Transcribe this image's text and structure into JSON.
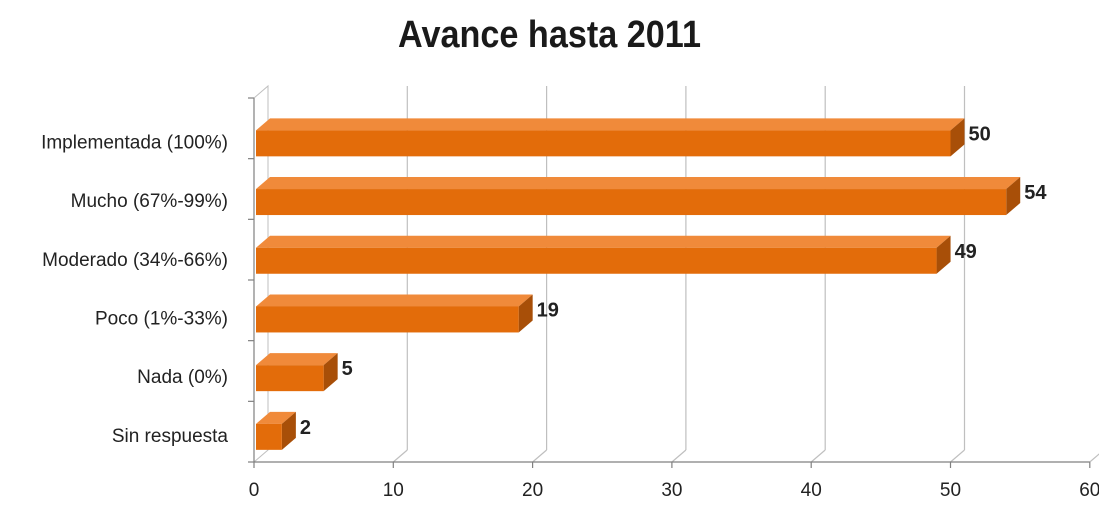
{
  "chart_data": {
    "type": "bar",
    "orientation": "horizontal",
    "title": "Avance hasta 2011",
    "categories": [
      "Implementada (100%)",
      "Mucho (67%-99%)",
      "Moderado (34%-66%)",
      "Poco (1%-33%)",
      "Nada (0%)",
      "Sin respuesta"
    ],
    "values": [
      50,
      54,
      49,
      19,
      5,
      2
    ],
    "xlim": [
      0,
      60
    ],
    "xticks": [
      "0",
      "10",
      "20",
      "30",
      "40",
      "50",
      "60"
    ],
    "grid": true,
    "legend": "none",
    "colors": {
      "bar": "#E36C0A",
      "bar_top": "#F08A3A",
      "bar_side": "#A84F08",
      "grid": "#BFBFBF",
      "axis": "#808080"
    }
  }
}
